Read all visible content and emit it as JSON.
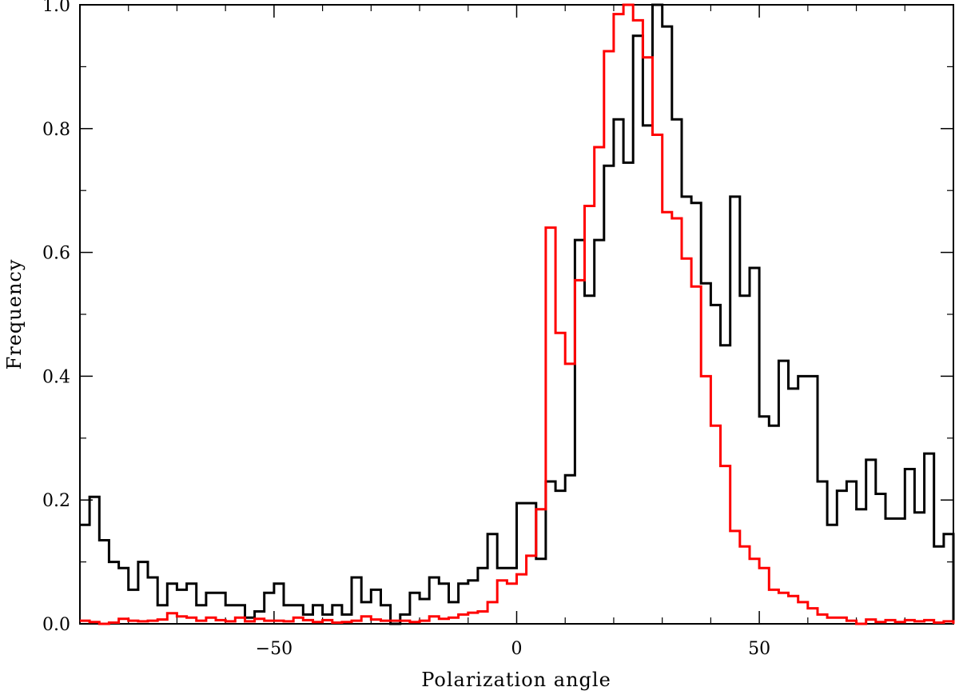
{
  "chart_data": {
    "type": "histogram-step",
    "title": "",
    "xlabel": "Polarization angle",
    "ylabel": "Frequency",
    "xlim": [
      -90,
      90
    ],
    "ylim": [
      0,
      1.0
    ],
    "bin_width": 2,
    "x_ticks": [
      -50,
      0,
      50
    ],
    "x_tick_labels": [
      "−50",
      "0",
      "50"
    ],
    "y_ticks": [
      0.0,
      0.2,
      0.4,
      0.6,
      0.8,
      1.0
    ],
    "y_tick_labels": [
      "0.0",
      "0.2",
      "0.4",
      "0.6",
      "0.8",
      "1.0"
    ],
    "grid": false,
    "series": [
      {
        "color": "#000000",
        "bin_start": -90,
        "values": [
          0.16,
          0.205,
          0.135,
          0.1,
          0.09,
          0.055,
          0.1,
          0.075,
          0.03,
          0.065,
          0.055,
          0.065,
          0.03,
          0.05,
          0.05,
          0.03,
          0.03,
          0.01,
          0.02,
          0.05,
          0.065,
          0.03,
          0.03,
          0.015,
          0.03,
          0.015,
          0.03,
          0.015,
          0.075,
          0.035,
          0.055,
          0.03,
          0.0,
          0.015,
          0.05,
          0.04,
          0.075,
          0.065,
          0.035,
          0.065,
          0.07,
          0.09,
          0.145,
          0.09,
          0.09,
          0.195,
          0.195,
          0.105,
          0.23,
          0.215,
          0.24,
          0.62,
          0.53,
          0.62,
          0.74,
          0.815,
          0.745,
          0.95,
          0.805,
          1.0,
          0.965,
          0.815,
          0.69,
          0.68,
          0.55,
          0.515,
          0.45,
          0.69,
          0.53,
          0.575,
          0.335,
          0.32,
          0.425,
          0.38,
          0.4,
          0.4,
          0.23,
          0.16,
          0.215,
          0.23,
          0.185,
          0.265,
          0.21,
          0.17,
          0.17,
          0.25,
          0.18,
          0.275,
          0.125,
          0.145,
          0.0
        ]
      },
      {
        "color": "#ff0000",
        "bin_start": -90,
        "values": [
          0.005,
          0.003,
          0.0,
          0.002,
          0.008,
          0.005,
          0.004,
          0.005,
          0.007,
          0.017,
          0.012,
          0.01,
          0.005,
          0.01,
          0.006,
          0.004,
          0.01,
          0.004,
          0.008,
          0.005,
          0.005,
          0.004,
          0.01,
          0.006,
          0.003,
          0.006,
          0.002,
          0.003,
          0.005,
          0.012,
          0.007,
          0.005,
          0.005,
          0.005,
          0.003,
          0.005,
          0.012,
          0.008,
          0.01,
          0.015,
          0.018,
          0.02,
          0.035,
          0.07,
          0.065,
          0.08,
          0.11,
          0.185,
          0.64,
          0.47,
          0.42,
          0.555,
          0.675,
          0.77,
          0.925,
          0.985,
          1.0,
          0.975,
          0.915,
          0.79,
          0.665,
          0.655,
          0.59,
          0.545,
          0.4,
          0.32,
          0.255,
          0.15,
          0.125,
          0.105,
          0.09,
          0.055,
          0.05,
          0.045,
          0.035,
          0.025,
          0.015,
          0.01,
          0.01,
          0.005,
          0.0,
          0.007,
          0.003,
          0.006,
          0.003,
          0.006,
          0.004,
          0.006,
          0.002,
          0.004,
          0.0
        ]
      }
    ]
  }
}
